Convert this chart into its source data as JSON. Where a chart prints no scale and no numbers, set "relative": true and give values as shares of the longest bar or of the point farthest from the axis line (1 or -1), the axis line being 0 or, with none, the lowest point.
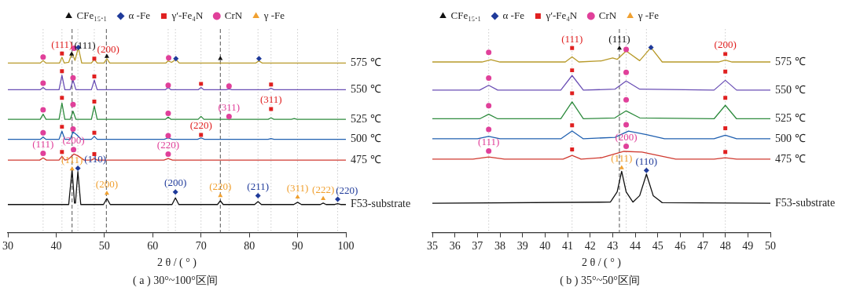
{
  "chart_data": [
    {
      "type": "line",
      "relative": true,
      "title": "( a ) 30°~100°区间",
      "xlabel": "2 θ / ( ° )",
      "xlim": [
        30,
        100
      ],
      "xticks": [
        30,
        40,
        50,
        60,
        70,
        80,
        90,
        100
      ],
      "legend": "top",
      "series": [
        {
          "name": "575 ℃",
          "color": "#b89a2a",
          "x": [
            30,
            36.7,
            37.3,
            37.9,
            40.7,
            41.2,
            41.7,
            42.6,
            43.3,
            43.9,
            44.6,
            45.3,
            47.3,
            47.9,
            48.5,
            49.9,
            50.5,
            51.1,
            62.7,
            63.2,
            63.9,
            64.8,
            65.5,
            81.3,
            82,
            82.7,
            100
          ],
          "values": [
            0.916,
            0.916,
            0.93,
            0.916,
            0.916,
            0.948,
            0.916,
            0.92,
            0.972,
            0.93,
            1,
            0.916,
            0.916,
            0.936,
            0.916,
            0.916,
            0.94,
            0.916,
            0.916,
            0.928,
            0.92,
            0.936,
            0.916,
            0.916,
            0.928,
            0.916,
            0.916
          ]
        },
        {
          "name": "550 ℃",
          "color": "#6a4fb5",
          "x": [
            30,
            36.7,
            37.3,
            37.9,
            40.6,
            41.2,
            41.8,
            42.9,
            43.5,
            44.1,
            47.3,
            47.9,
            48.5,
            62.6,
            63.2,
            63.8,
            69.4,
            70,
            70.6,
            75.2,
            75.8,
            76.4,
            83.9,
            84.5,
            85.1,
            100
          ],
          "values": [
            0.772,
            0.772,
            0.784,
            0.772,
            0.772,
            0.85,
            0.772,
            0.772,
            0.824,
            0.772,
            0.772,
            0.824,
            0.772,
            0.772,
            0.784,
            0.772,
            0.772,
            0.784,
            0.772,
            0.772,
            0.776,
            0.772,
            0.772,
            0.78,
            0.772,
            0.772
          ]
        },
        {
          "name": "525 ℃",
          "color": "#2e8b3e",
          "x": [
            30,
            36.7,
            37.3,
            37.9,
            40.6,
            41.2,
            41.8,
            42.9,
            43.5,
            44.1,
            47.3,
            47.9,
            48.5,
            62.6,
            63.2,
            63.8,
            69.4,
            70,
            70.6,
            83.9,
            84.5,
            85.1,
            88.7,
            89.3,
            89.9,
            100
          ],
          "values": [
            0.612,
            0.612,
            0.64,
            0.612,
            0.612,
            0.7,
            0.612,
            0.612,
            0.656,
            0.612,
            0.612,
            0.684,
            0.612,
            0.612,
            0.624,
            0.612,
            0.612,
            0.628,
            0.612,
            0.612,
            0.62,
            0.612,
            0.612,
            0.616,
            0.612,
            0.612
          ]
        },
        {
          "name": "500 ℃",
          "color": "#2060b0",
          "x": [
            30,
            36.7,
            37.3,
            37.9,
            40.6,
            41.2,
            41.8,
            42.9,
            43.5,
            44.3,
            45.2,
            47.3,
            47.9,
            48.5,
            62.4,
            63.2,
            64,
            69.3,
            70,
            70.7,
            83.9,
            84.5,
            85.1,
            100
          ],
          "values": [
            0.504,
            0.504,
            0.516,
            0.504,
            0.504,
            0.548,
            0.504,
            0.504,
            0.544,
            0.528,
            0.504,
            0.504,
            0.52,
            0.504,
            0.504,
            0.512,
            0.504,
            0.504,
            0.512,
            0.504,
            0.504,
            0.508,
            0.504,
            0.504
          ]
        },
        {
          "name": "475 ℃",
          "color": "#d03a30",
          "x": [
            30,
            36.6,
            37.3,
            38,
            40.6,
            41.2,
            41.8,
            42.5,
            43.7,
            44.5,
            45.8,
            47.3,
            47.9,
            48.5,
            62.3,
            63.2,
            64.1,
            100
          ],
          "values": [
            0.392,
            0.392,
            0.404,
            0.392,
            0.392,
            0.412,
            0.392,
            0.396,
            0.425,
            0.415,
            0.392,
            0.392,
            0.4,
            0.392,
            0.392,
            0.4,
            0.392,
            0.392
          ]
        },
        {
          "name": "F53-substrate",
          "color": "#111111",
          "x": [
            30,
            42.6,
            43.3,
            43.8,
            44,
            44.5,
            45.1,
            49.8,
            50.5,
            51.2,
            64,
            64.7,
            65.4,
            73.4,
            74,
            74.6,
            81.1,
            81.8,
            82.5,
            89.2,
            90,
            90.8,
            94.7,
            95.3,
            95.9,
            97.7,
            98.3,
            98.9,
            100
          ],
          "values": [
            0.152,
            0.152,
            0.34,
            0.16,
            0.16,
            0.33,
            0.152,
            0.152,
            0.184,
            0.152,
            0.152,
            0.188,
            0.152,
            0.152,
            0.172,
            0.152,
            0.152,
            0.168,
            0.152,
            0.152,
            0.164,
            0.152,
            0.152,
            0.16,
            0.152,
            0.152,
            0.157,
            0.152,
            0.152
          ]
        },
        {
          "type": "scatter",
          "marker": "triangle",
          "name": "CFe₁₅.₁",
          "color": "#111111",
          "x": [
            43.2,
            50.5,
            74
          ],
          "values": [
            0.964,
            0.952,
            0.94
          ]
        },
        {
          "type": "scatter",
          "marker": "diamond",
          "name": "α -Fe",
          "color": "#1f3a9a",
          "x": [
            44.6,
            64.8,
            82,
            44.5,
            64.7,
            81.8,
            98.3
          ],
          "values": [
            1,
            0.94,
            0.94,
            0.348,
            0.22,
            0.2,
            0.18
          ]
        },
        {
          "type": "scatter",
          "marker": "square",
          "name": "γ′-Fe₄N",
          "color": "#e02020",
          "x": [
            41.2,
            47.9,
            41.2,
            47.9,
            70,
            84.5,
            41.2,
            47.9,
            84.5,
            41.2,
            47.9,
            70,
            41.2,
            47.9
          ],
          "values": [
            0.968,
            0.94,
            0.872,
            0.844,
            0.804,
            0.8,
            0.728,
            0.708,
            0.668,
            0.572,
            0.54,
            0.528,
            0.436,
            0.424
          ]
        },
        {
          "type": "scatter",
          "marker": "circle",
          "name": "CrN",
          "color": "#e0409a",
          "x": [
            37.3,
            43.7,
            63.3,
            37.3,
            43.5,
            63.2,
            75.8,
            37.3,
            43.5,
            63.2,
            75.8,
            37.3,
            43.5,
            63.2,
            37.3,
            43.6,
            63.2
          ],
          "values": [
            0.948,
            0.996,
            0.944,
            0.808,
            0.836,
            0.796,
            0.792,
            0.664,
            0.692,
            0.644,
            0.628,
            0.54,
            0.56,
            0.524,
            0.428,
            0.448,
            0.424
          ]
        },
        {
          "type": "scatter",
          "marker": "triangle",
          "name": "γ -Fe",
          "color": "#f0a030",
          "x": [
            43.3,
            50.5,
            74,
            90,
            95.3
          ],
          "values": [
            0.344,
            0.212,
            0.2,
            0.192,
            0.184
          ]
        }
      ],
      "ref_lines": [
        {
          "axis": "x",
          "value": 43.3,
          "line_style": "dashed",
          "color": "#555555"
        },
        {
          "axis": "x",
          "value": 50.4,
          "line_style": "dashed",
          "color": "#555555"
        },
        {
          "axis": "x",
          "value": 74,
          "line_style": "dashed",
          "color": "#555555"
        },
        {
          "axis": "x",
          "value": 37.3,
          "line_style": "dotted",
          "color": "#cccccc"
        },
        {
          "axis": "x",
          "value": 41.2,
          "line_style": "dotted",
          "color": "#cccccc"
        },
        {
          "axis": "x",
          "value": 44.5,
          "line_style": "dotted",
          "color": "#cccccc"
        },
        {
          "axis": "x",
          "value": 47.9,
          "line_style": "dotted",
          "color": "#cccccc"
        },
        {
          "axis": "x",
          "value": 63.2,
          "line_style": "dotted",
          "color": "#cccccc"
        },
        {
          "axis": "x",
          "value": 64.7,
          "line_style": "dotted",
          "color": "#cccccc"
        },
        {
          "axis": "x",
          "value": 70,
          "line_style": "dotted",
          "color": "#cccccc"
        },
        {
          "axis": "x",
          "value": 75.8,
          "line_style": "dotted",
          "color": "#cccccc"
        },
        {
          "axis": "x",
          "value": 81.8,
          "line_style": "dotted",
          "color": "#cccccc"
        },
        {
          "axis": "x",
          "value": 84.5,
          "line_style": "dotted",
          "color": "#cccccc"
        },
        {
          "axis": "x",
          "value": 90,
          "line_style": "dotted",
          "color": "#cccccc"
        },
        {
          "axis": "x",
          "value": 98.3,
          "line_style": "dotted",
          "color": "#cccccc"
        }
      ],
      "annotations": [
        {
          "text": "(111)",
          "x": 41.2,
          "y": 0.968
        },
        {
          "text": "(111)",
          "x": 43.2,
          "y": 0.964
        },
        {
          "text": "(200)",
          "x": 47.9,
          "y": 0.94
        },
        {
          "text": "(311)",
          "x": 75.8,
          "y": 0.628
        },
        {
          "text": "(311)",
          "x": 84.5,
          "y": 0.668
        },
        {
          "text": "(220)",
          "x": 70,
          "y": 0.528
        },
        {
          "text": "(111)",
          "x": 37.3,
          "y": 0.428
        },
        {
          "text": "(200)",
          "x": 43.6,
          "y": 0.448
        },
        {
          "text": "(220)",
          "x": 63.2,
          "y": 0.424
        },
        {
          "text": "(111)",
          "x": 43.3,
          "y": 0.344
        },
        {
          "text": "(110)",
          "x": 44.5,
          "y": 0.348
        },
        {
          "text": "(200)",
          "x": 50.5,
          "y": 0.212
        },
        {
          "text": "(200)",
          "x": 64.7,
          "y": 0.22
        },
        {
          "text": "(220)",
          "x": 74,
          "y": 0.2
        },
        {
          "text": "(211)",
          "x": 81.8,
          "y": 0.2
        },
        {
          "text": "(311)",
          "x": 90,
          "y": 0.192
        },
        {
          "text": "(222)",
          "x": 95.3,
          "y": 0.184
        },
        {
          "text": "(220)",
          "x": 98.3,
          "y": 0.18
        }
      ]
    },
    {
      "type": "line",
      "relative": true,
      "title": "( b ) 35°~50°区间",
      "xlabel": "2 θ / ( ° )",
      "xlim": [
        35,
        50
      ],
      "xticks": [
        35,
        36,
        37,
        38,
        39,
        40,
        41,
        42,
        43,
        44,
        45,
        46,
        47,
        48,
        49,
        50
      ],
      "legend": "top left",
      "series": [
        {
          "name": "575 ℃",
          "color": "#b89a2a",
          "x": [
            35,
            37.2,
            37.6,
            38,
            40.9,
            41.2,
            41.5,
            42.5,
            43,
            43.2,
            43.6,
            44.2,
            44.7,
            45.2,
            47.7,
            48,
            48.3,
            50
          ],
          "values": [
            0.922,
            0.922,
            0.934,
            0.922,
            0.922,
            0.95,
            0.922,
            0.928,
            0.944,
            0.936,
            0.981,
            0.929,
            1,
            0.922,
            0.922,
            0.932,
            0.922,
            0.922
          ]
        },
        {
          "name": "550 ℃",
          "color": "#6a4fb5",
          "x": [
            35,
            37.1,
            37.5,
            37.9,
            40.7,
            41.2,
            41.7,
            43.1,
            43.6,
            44.2,
            47.5,
            48,
            48.5,
            50
          ],
          "values": [
            0.77,
            0.77,
            0.796,
            0.77,
            0.77,
            0.849,
            0.77,
            0.775,
            0.819,
            0.775,
            0.77,
            0.823,
            0.77,
            0.77
          ]
        },
        {
          "name": "525 ℃",
          "color": "#2e8b3e",
          "x": [
            35,
            37.1,
            37.5,
            37.9,
            40.7,
            41.2,
            41.7,
            43.1,
            43.6,
            44.2,
            47.5,
            48,
            48.5,
            50
          ],
          "values": [
            0.615,
            0.615,
            0.64,
            0.615,
            0.615,
            0.706,
            0.615,
            0.62,
            0.658,
            0.62,
            0.615,
            0.688,
            0.615,
            0.615
          ]
        },
        {
          "name": "500 ℃",
          "color": "#2060b0",
          "x": [
            35,
            37,
            37.5,
            38,
            40.7,
            41.2,
            41.7,
            43.1,
            43.7,
            44.5,
            45.3,
            47.5,
            48,
            48.5,
            50
          ],
          "values": [
            0.507,
            0.507,
            0.52,
            0.507,
            0.507,
            0.549,
            0.507,
            0.515,
            0.549,
            0.53,
            0.507,
            0.507,
            0.526,
            0.507,
            0.507
          ]
        },
        {
          "name": "475 ℃",
          "color": "#d03a30",
          "x": [
            35,
            36.8,
            37.5,
            38.2,
            40.8,
            41.2,
            41.6,
            42.5,
            43.5,
            44.3,
            45.8,
            47.5,
            48,
            48.5,
            50
          ],
          "values": [
            0.397,
            0.397,
            0.409,
            0.397,
            0.397,
            0.417,
            0.397,
            0.405,
            0.439,
            0.435,
            0.397,
            0.397,
            0.405,
            0.397,
            0.397
          ]
        },
        {
          "name": "F53-substrate",
          "color": "#111111",
          "x": [
            35,
            42.9,
            43.2,
            43.4,
            43.6,
            43.9,
            44.2,
            44.5,
            44.8,
            45.2,
            50
          ],
          "values": [
            0.159,
            0.165,
            0.22,
            0.331,
            0.22,
            0.165,
            0.2,
            0.316,
            0.2,
            0.162,
            0.159
          ]
        },
        {
          "type": "scatter",
          "marker": "triangle",
          "name": "CFe₁₅.₁",
          "color": "#111111",
          "x": [
            43.3
          ],
          "values": [
            0.996
          ]
        },
        {
          "type": "scatter",
          "marker": "diamond",
          "name": "α -Fe",
          "color": "#1f3a9a",
          "x": [
            44.7,
            44.5
          ],
          "values": [
            1,
            0.336
          ]
        },
        {
          "type": "scatter",
          "marker": "square",
          "name": "γ′-Fe₄N",
          "color": "#e02020",
          "x": [
            41.2,
            48,
            41.2,
            48,
            41.2,
            48,
            41.2,
            48,
            41.2,
            48
          ],
          "values": [
            0.997,
            0.965,
            0.877,
            0.87,
            0.753,
            0.728,
            0.58,
            0.564,
            0.45,
            0.436
          ]
        },
        {
          "type": "scatter",
          "marker": "circle",
          "name": "CrN",
          "color": "#e0409a",
          "x": [
            37.5,
            43.6,
            37.5,
            43.6,
            37.5,
            43.6,
            37.5,
            43.6,
            37.5,
            43.6
          ],
          "values": [
            0.974,
            0.99,
            0.835,
            0.866,
            0.686,
            0.718,
            0.558,
            0.583,
            0.441,
            0.467
          ]
        },
        {
          "type": "scatter",
          "marker": "triangle",
          "name": "γ -Fe",
          "color": "#f0a030",
          "x": [
            43.4
          ],
          "values": [
            0.35
          ]
        }
      ],
      "ref_lines": [
        {
          "axis": "x",
          "value": 43.3,
          "line_style": "dashed",
          "color": "#555555"
        },
        {
          "axis": "x",
          "value": 37.5,
          "line_style": "dotted",
          "color": "#cccccc"
        },
        {
          "axis": "x",
          "value": 41.2,
          "line_style": "dotted",
          "color": "#cccccc"
        },
        {
          "axis": "x",
          "value": 43.6,
          "line_style": "dotted",
          "color": "#cccccc"
        },
        {
          "axis": "x",
          "value": 44.5,
          "line_style": "dotted",
          "color": "#cccccc"
        },
        {
          "axis": "x",
          "value": 48,
          "line_style": "dotted",
          "color": "#cccccc"
        }
      ],
      "annotations": [
        {
          "text": "(111)",
          "x": 41.2,
          "y": 0.997
        },
        {
          "text": "(111)",
          "x": 43.3,
          "y": 0.996
        },
        {
          "text": "(200)",
          "x": 48,
          "y": 0.965
        },
        {
          "text": "(111)",
          "x": 37.5,
          "y": 0.441
        },
        {
          "text": "(200)",
          "x": 43.6,
          "y": 0.467
        },
        {
          "text": "(111)",
          "x": 43.4,
          "y": 0.35
        },
        {
          "text": "(110)",
          "x": 44.5,
          "y": 0.336
        }
      ]
    }
  ]
}
